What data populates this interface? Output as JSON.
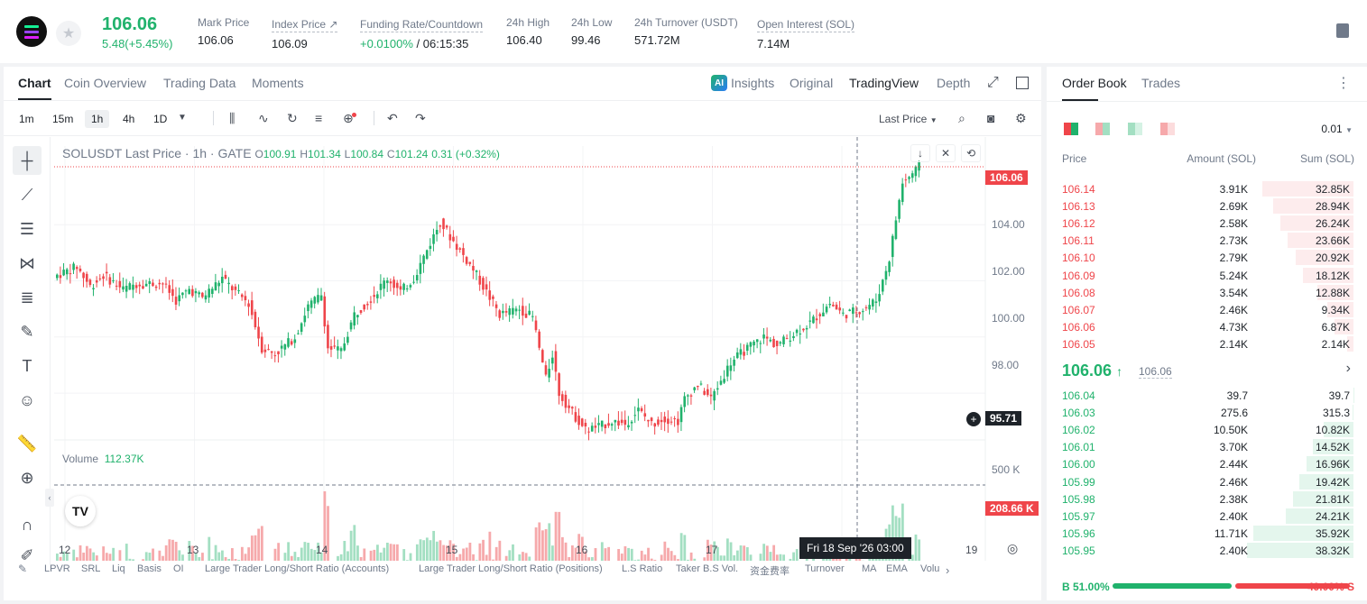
{
  "header": {
    "last_price": "106.06",
    "change": "5.48(+5.45%)",
    "stats": [
      {
        "label": "Mark Price",
        "value": "106.06"
      },
      {
        "label": "Index Price ↗",
        "value": "106.09"
      },
      {
        "label": "Funding Rate/Countdown",
        "value_a": "+0.0100%",
        "value_b": " / 06:15:35"
      },
      {
        "label": "24h High",
        "value": "106.40"
      },
      {
        "label": "24h Low",
        "value": "99.46"
      },
      {
        "label": "24h Turnover (USDT)",
        "value": "571.72M"
      },
      {
        "label": "Open Interest (SOL)",
        "value": "7.14M"
      }
    ]
  },
  "chart_tabs": [
    "Chart",
    "Coin Overview",
    "Trading Data",
    "Moments"
  ],
  "view_tabs": [
    "Insights",
    "Original",
    "TradingView",
    "Depth"
  ],
  "timeframes": [
    "1m",
    "15m",
    "1h",
    "4h",
    "1D"
  ],
  "price_source": "Last Price",
  "legend": {
    "title": "SOLUSDT Last Price · 1h · GATE",
    "o_label": "O",
    "o": "100.91",
    "h_label": "H",
    "h": "101.34",
    "l_label": "L",
    "l": "100.84",
    "c_label": "C",
    "c": "101.24",
    "chg": "0.31 (+0.32%)"
  },
  "volume_legend": {
    "label": "Volume",
    "value": "112.37K"
  },
  "price_axis": [
    "104.00",
    "102.00",
    "100.00",
    "98.00"
  ],
  "volume_axis": [
    "500 K"
  ],
  "tags": {
    "last": "106.06",
    "cross": "95.71",
    "volume": "208.66 K"
  },
  "x_axis": [
    "12",
    "13",
    "14",
    "15",
    "16",
    "17",
    "19"
  ],
  "crosshair_date": "Fri 18 Sep '26   03:00",
  "bottom_indicators": [
    "LPVR",
    "SRL",
    "Liq",
    "Basis",
    "OI",
    "Large Trader Long/Short Ratio (Accounts)",
    "Large Trader Long/Short Ratio (Positions)",
    "L.S Ratio",
    "Taker B.S Vol.",
    "资金费率",
    "Turnover",
    "MA",
    "EMA",
    "Volu"
  ],
  "orderbook": {
    "tabs": [
      "Order Book",
      "Trades"
    ],
    "precision": "0.01",
    "headers": [
      "Price",
      "Amount (SOL)",
      "Sum (SOL)"
    ],
    "asks": [
      {
        "p": "106.14",
        "a": "3.91K",
        "s": "32.85K",
        "f": 0.856
      },
      {
        "p": "106.13",
        "a": "2.69K",
        "s": "28.94K",
        "f": 0.754
      },
      {
        "p": "106.12",
        "a": "2.58K",
        "s": "26.24K",
        "f": 0.684
      },
      {
        "p": "106.11",
        "a": "2.73K",
        "s": "23.66K",
        "f": 0.617
      },
      {
        "p": "106.10",
        "a": "2.79K",
        "s": "20.92K",
        "f": 0.545
      },
      {
        "p": "106.09",
        "a": "5.24K",
        "s": "18.12K",
        "f": 0.472
      },
      {
        "p": "106.08",
        "a": "3.54K",
        "s": "12.88K",
        "f": 0.336
      },
      {
        "p": "106.07",
        "a": "2.46K",
        "s": "9.34K",
        "f": 0.243
      },
      {
        "p": "106.06",
        "a": "4.73K",
        "s": "6.87K",
        "f": 0.179
      },
      {
        "p": "106.05",
        "a": "2.14K",
        "s": "2.14K",
        "f": 0.056
      }
    ],
    "mid": {
      "price": "106.06",
      "arrow": "↑",
      "mark": "106.06"
    },
    "bids": [
      {
        "p": "106.04",
        "a": "39.7",
        "s": "39.7",
        "f": 0.001
      },
      {
        "p": "106.03",
        "a": "275.6",
        "s": "315.3",
        "f": 0.008
      },
      {
        "p": "106.02",
        "a": "10.50K",
        "s": "10.82K",
        "f": 0.282
      },
      {
        "p": "106.01",
        "a": "3.70K",
        "s": "14.52K",
        "f": 0.379
      },
      {
        "p": "106.00",
        "a": "2.44K",
        "s": "16.96K",
        "f": 0.443
      },
      {
        "p": "105.99",
        "a": "2.46K",
        "s": "19.42K",
        "f": 0.507
      },
      {
        "p": "105.98",
        "a": "2.38K",
        "s": "21.81K",
        "f": 0.569
      },
      {
        "p": "105.97",
        "a": "2.40K",
        "s": "24.21K",
        "f": 0.632
      },
      {
        "p": "105.96",
        "a": "11.71K",
        "s": "35.92K",
        "f": 0.938
      },
      {
        "p": "105.95",
        "a": "2.40K",
        "s": "38.32K",
        "f": 1.0
      }
    ],
    "buy_ratio": "B 51.00%",
    "sell_ratio": "49.00% S",
    "buy_fraction": 0.51
  },
  "colors": {
    "up": "#20b26c",
    "down": "#ef454a",
    "up_vol": "#a3dfc2",
    "down_vol": "#f6a9ab"
  },
  "chart_data": {
    "type": "candlestick",
    "title": "SOLUSDT Last Price · 1h · GATE",
    "x_ticks": [
      "12",
      "13",
      "14",
      "15",
      "16",
      "17",
      "19"
    ],
    "y_ticks": [
      "98.00",
      "100.00",
      "102.00",
      "104.00"
    ],
    "ylim": [
      94.6,
      106.8
    ],
    "volume_ylim": [
      0,
      600
    ],
    "anchors": [
      [
        0,
        102.2
      ],
      [
        6,
        102.5
      ],
      [
        10,
        101.8
      ],
      [
        14,
        102.2
      ],
      [
        20,
        101.7
      ],
      [
        24,
        101.9
      ],
      [
        32,
        101.9
      ],
      [
        36,
        101.3
      ],
      [
        40,
        101.7
      ],
      [
        44,
        101.4
      ],
      [
        50,
        102.1
      ],
      [
        54,
        101.6
      ],
      [
        58,
        101.2
      ],
      [
        62,
        99.6
      ],
      [
        66,
        99.4
      ],
      [
        72,
        100.0
      ],
      [
        76,
        101.1
      ],
      [
        80,
        101.5
      ],
      [
        82,
        99.6
      ],
      [
        86,
        99.5
      ],
      [
        90,
        100.8
      ],
      [
        96,
        101.5
      ],
      [
        100,
        102.1
      ],
      [
        104,
        101.6
      ],
      [
        108,
        102.1
      ],
      [
        112,
        103.1
      ],
      [
        116,
        104.1
      ],
      [
        120,
        103.4
      ],
      [
        126,
        102.4
      ],
      [
        130,
        101.6
      ],
      [
        134,
        100.8
      ],
      [
        140,
        101.0
      ],
      [
        144,
        100.7
      ],
      [
        148,
        98.5
      ],
      [
        150,
        99.4
      ],
      [
        152,
        98.0
      ],
      [
        156,
        97.3
      ],
      [
        160,
        96.7
      ],
      [
        164,
        96.8
      ],
      [
        168,
        97.0
      ],
      [
        172,
        96.9
      ],
      [
        176,
        97.4
      ],
      [
        180,
        96.9
      ],
      [
        184,
        97.1
      ],
      [
        188,
        97.0
      ],
      [
        190,
        97.8
      ],
      [
        194,
        98.3
      ],
      [
        198,
        97.8
      ],
      [
        204,
        99.1
      ],
      [
        208,
        99.5
      ],
      [
        214,
        100.0
      ],
      [
        218,
        99.7
      ],
      [
        224,
        100.2
      ],
      [
        228,
        100.5
      ],
      [
        234,
        101.2
      ],
      [
        238,
        100.8
      ],
      [
        244,
        101.0
      ],
      [
        248,
        101.3
      ],
      [
        250,
        102.0
      ],
      [
        252,
        102.8
      ],
      [
        254,
        104.2
      ],
      [
        256,
        105.5
      ],
      [
        258,
        105.7
      ],
      [
        261,
        106.06
      ]
    ]
  }
}
